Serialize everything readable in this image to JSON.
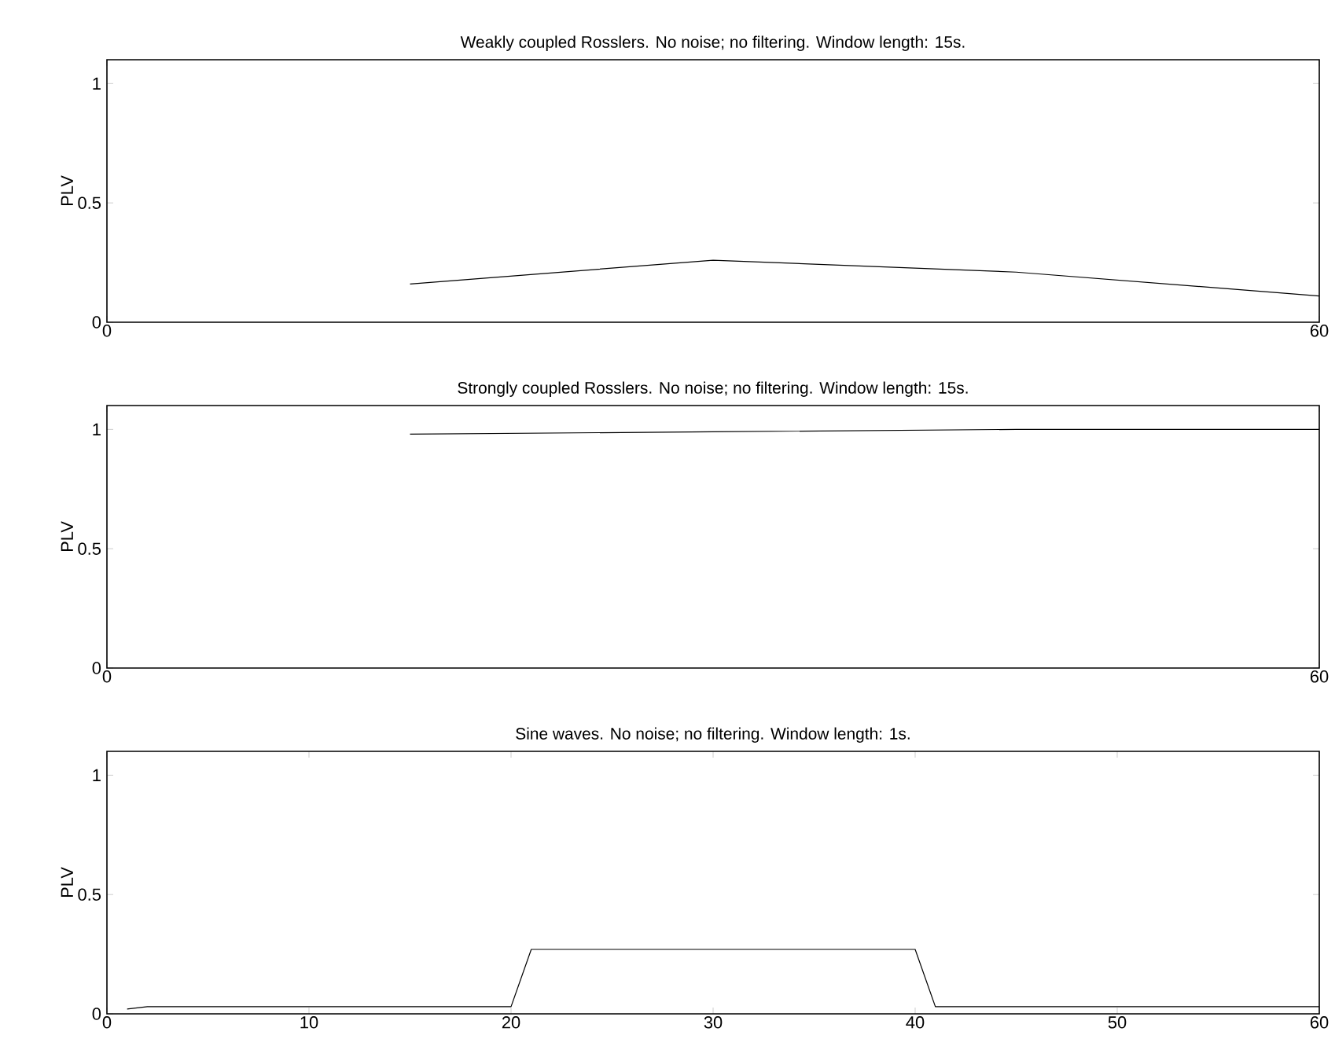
{
  "chart_data": [
    {
      "type": "line",
      "title": "Weakly coupled Rosslers. No noise; no filtering. Window length: 15s.",
      "ylabel": "PLV",
      "x": [
        15,
        30,
        45,
        60
      ],
      "values": [
        0.16,
        0.26,
        0.21,
        0.11
      ],
      "color": "#000000",
      "xlim": [
        0,
        60
      ],
      "ylim": [
        0,
        1.1
      ],
      "xticks": [
        0,
        60
      ],
      "yticks": [
        0,
        0.5,
        1
      ]
    },
    {
      "type": "line",
      "title": "Strongly coupled Rosslers. No noise; no filtering. Window length: 15s.",
      "ylabel": "PLV",
      "x": [
        15,
        30,
        45,
        60
      ],
      "values": [
        0.98,
        0.99,
        1.0,
        1.0
      ],
      "color": "#000000",
      "xlim": [
        0,
        60
      ],
      "ylim": [
        0,
        1.1
      ],
      "xticks": [
        0,
        60
      ],
      "yticks": [
        0,
        0.5,
        1
      ]
    },
    {
      "type": "line",
      "title": "Sine waves. No noise; no filtering. Window length: 1s.",
      "ylabel": "PLV",
      "x": [
        1,
        2,
        20,
        21,
        40,
        41,
        60
      ],
      "values": [
        0.02,
        0.03,
        0.03,
        0.27,
        0.27,
        0.03,
        0.03
      ],
      "color": "#000000",
      "xlim": [
        0,
        60
      ],
      "ylim": [
        0,
        1.1
      ],
      "xticks": [
        0,
        10,
        20,
        30,
        40,
        50,
        60
      ],
      "yticks": [
        0,
        0.5,
        1
      ]
    }
  ]
}
